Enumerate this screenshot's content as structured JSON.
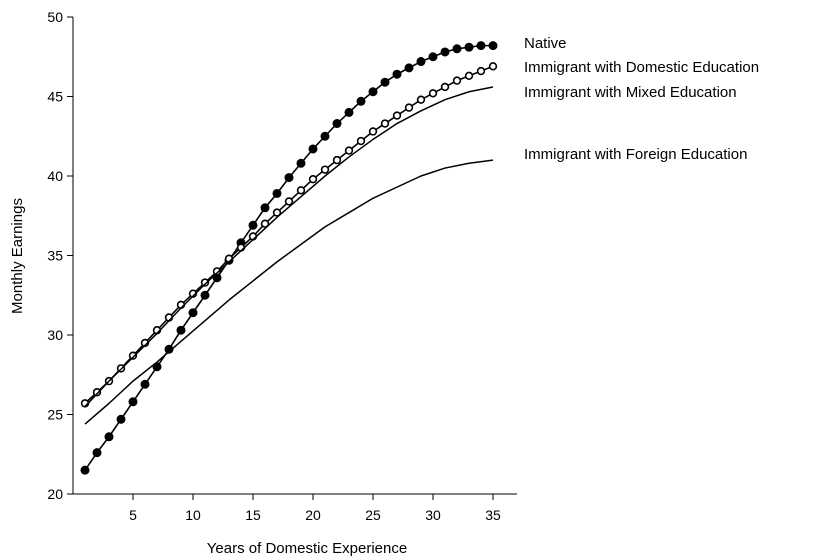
{
  "chart_data": {
    "type": "line",
    "title": "",
    "xlabel": "Years of Domestic Experience",
    "ylabel": "Monthly Earnings",
    "xlim": [
      0,
      37
    ],
    "ylim": [
      20,
      50
    ],
    "xticks": [
      5,
      10,
      15,
      20,
      25,
      30,
      35
    ],
    "yticks": [
      20,
      25,
      30,
      35,
      40,
      45,
      50
    ],
    "grid": false,
    "legend_placement": "right, beside line ends",
    "series": [
      {
        "name": "Native",
        "style": "solid line with filled circle markers",
        "color": "#000000",
        "x": [
          1,
          2,
          3,
          4,
          5,
          6,
          7,
          8,
          9,
          10,
          11,
          12,
          13,
          14,
          15,
          16,
          17,
          18,
          19,
          20,
          21,
          22,
          23,
          24,
          25,
          26,
          27,
          28,
          29,
          30,
          31,
          32,
          33,
          34,
          35
        ],
        "y": [
          21.5,
          22.6,
          23.6,
          24.7,
          25.8,
          26.9,
          28.0,
          29.1,
          30.3,
          31.4,
          32.5,
          33.6,
          34.7,
          35.8,
          36.9,
          38.0,
          38.9,
          39.9,
          40.8,
          41.7,
          42.5,
          43.3,
          44.0,
          44.7,
          45.3,
          45.9,
          46.4,
          46.8,
          47.2,
          47.5,
          47.8,
          48.0,
          48.1,
          48.2,
          48.2
        ]
      },
      {
        "name": "Immigrant with Domestic Education",
        "style": "solid line with open circle markers",
        "color": "#000000",
        "x": [
          1,
          2,
          3,
          4,
          5,
          6,
          7,
          8,
          9,
          10,
          11,
          12,
          13,
          14,
          15,
          16,
          17,
          18,
          19,
          20,
          21,
          22,
          23,
          24,
          25,
          26,
          27,
          28,
          29,
          30,
          31,
          32,
          33,
          34,
          35
        ],
        "y": [
          25.7,
          26.4,
          27.1,
          27.9,
          28.7,
          29.5,
          30.3,
          31.1,
          31.9,
          32.6,
          33.3,
          34.0,
          34.8,
          35.5,
          36.2,
          37.0,
          37.7,
          38.4,
          39.1,
          39.8,
          40.4,
          41.0,
          41.6,
          42.2,
          42.8,
          43.3,
          43.8,
          44.3,
          44.8,
          45.2,
          45.6,
          46.0,
          46.3,
          46.6,
          46.9
        ]
      },
      {
        "name": "Immigrant with Mixed Education",
        "style": "solid line",
        "color": "#000000",
        "x": [
          1,
          3,
          5,
          7,
          9,
          11,
          13,
          15,
          17,
          19,
          21,
          23,
          25,
          27,
          29,
          31,
          33,
          35
        ],
        "y": [
          25.5,
          27.1,
          28.6,
          30.1,
          31.7,
          33.2,
          34.6,
          36.0,
          37.4,
          38.7,
          40.0,
          41.2,
          42.3,
          43.3,
          44.1,
          44.8,
          45.3,
          45.6
        ]
      },
      {
        "name": "Immigrant with Foreign Education",
        "style": "solid line",
        "color": "#000000",
        "x": [
          1,
          3,
          5,
          7,
          9,
          11,
          13,
          15,
          17,
          19,
          21,
          23,
          25,
          27,
          29,
          31,
          33,
          35
        ],
        "y": [
          24.4,
          25.7,
          27.1,
          28.3,
          29.6,
          30.9,
          32.2,
          33.4,
          34.6,
          35.7,
          36.8,
          37.7,
          38.6,
          39.3,
          40.0,
          40.5,
          40.8,
          41.0
        ]
      }
    ]
  }
}
